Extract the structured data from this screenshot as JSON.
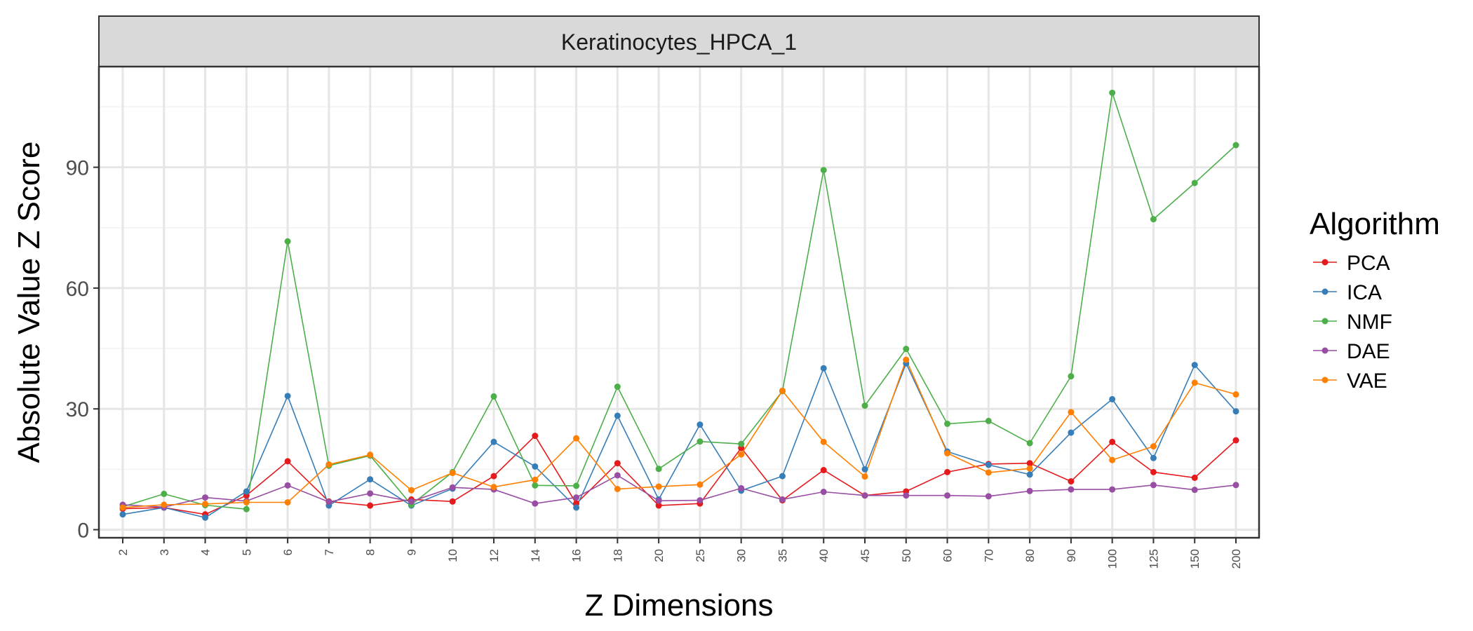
{
  "chart_data": {
    "type": "line",
    "facet_label": "Keratinocytes_HPCA_1",
    "xlabel": "Z Dimensions",
    "ylabel": "Absolute Value Z Score",
    "legend_title": "Algorithm",
    "legend_position": "right",
    "grid": true,
    "ylim": [
      -2,
      115
    ],
    "yticks": [
      0,
      30,
      60,
      90
    ],
    "categories": [
      "2",
      "3",
      "4",
      "5",
      "6",
      "7",
      "8",
      "9",
      "10",
      "12",
      "14",
      "16",
      "18",
      "20",
      "25",
      "30",
      "35",
      "40",
      "45",
      "50",
      "60",
      "70",
      "80",
      "90",
      "100",
      "125",
      "150",
      "200"
    ],
    "series": [
      {
        "name": "PCA",
        "color": "#E41A1C",
        "values": [
          5.2,
          5.5,
          3.8,
          8.5,
          17,
          7,
          6,
          7.5,
          7,
          13.3,
          23.3,
          6.5,
          16.5,
          6,
          6.5,
          20.3,
          7.3,
          14.8,
          8.5,
          9.5,
          14.3,
          16.3,
          16.5,
          12,
          21.8,
          14.3,
          12.9,
          22.2
        ]
      },
      {
        "name": "ICA",
        "color": "#377EB8",
        "values": [
          3.8,
          5.5,
          3,
          9.5,
          33.2,
          6,
          12.5,
          6,
          10.2,
          21.8,
          15.7,
          5.5,
          28.3,
          7.5,
          26.1,
          9.7,
          13.3,
          40.1,
          15,
          41.3,
          19.4,
          16.1,
          13.7,
          24.1,
          32.4,
          17.8,
          40.9,
          29.4
        ]
      },
      {
        "name": "NMF",
        "color": "#4DAF4A",
        "values": [
          5.7,
          8.9,
          6.1,
          5.1,
          71.6,
          15.9,
          18.4,
          6.2,
          14.3,
          33.1,
          11,
          10.9,
          35.5,
          15.1,
          21.9,
          21.3,
          34.4,
          89.3,
          30.8,
          44.9,
          26.3,
          27,
          21.5,
          38.1,
          108.5,
          77.1,
          86.1,
          95.5
        ]
      },
      {
        "name": "DAE",
        "color": "#984EA3",
        "values": [
          6.2,
          5.6,
          8,
          7.1,
          11,
          6.9,
          9,
          7,
          10.5,
          10,
          6.5,
          8,
          13.5,
          7.2,
          7.3,
          10.3,
          7.5,
          9.4,
          8.5,
          8.5,
          8.5,
          8.3,
          9.6,
          10,
          10,
          11.1,
          9.9,
          11.1
        ]
      },
      {
        "name": "VAE",
        "color": "#FF7F00",
        "values": [
          5.5,
          6.2,
          6.4,
          6.8,
          6.8,
          16.2,
          18.6,
          9.8,
          14.1,
          10.6,
          12.4,
          22.7,
          10.1,
          10.7,
          11.2,
          18.7,
          34.5,
          21.8,
          13.2,
          42.2,
          19,
          14.2,
          15.2,
          29.2,
          17.3,
          20.7,
          36.5,
          33.6
        ]
      }
    ]
  }
}
